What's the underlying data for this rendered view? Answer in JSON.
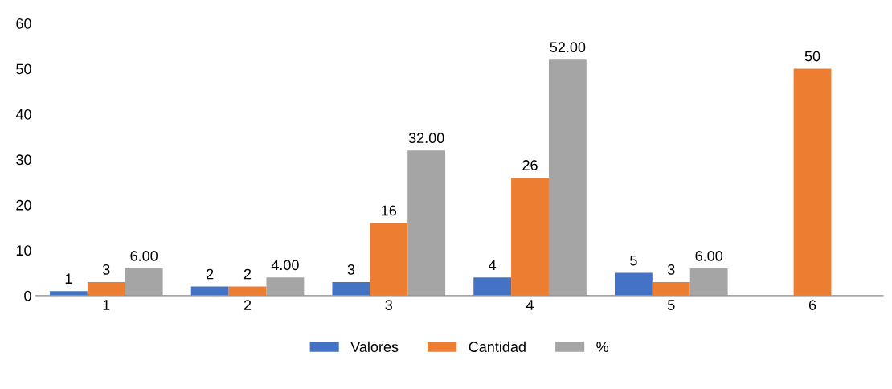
{
  "chart_data": {
    "type": "bar",
    "categories": [
      "1",
      "2",
      "3",
      "4",
      "5",
      "6"
    ],
    "series": [
      {
        "name": "Valores",
        "color": "#4472c4",
        "values": [
          1,
          2,
          3,
          4,
          5,
          null
        ],
        "value_labels": [
          "1",
          "2",
          "3",
          "4",
          "5",
          null
        ]
      },
      {
        "name": "Cantidad",
        "color": "#ed7d31",
        "values": [
          3,
          2,
          16,
          26,
          3,
          50
        ],
        "value_labels": [
          "3",
          "2",
          "16",
          "26",
          "3",
          "50"
        ]
      },
      {
        "name": "%",
        "color": "#a5a5a5",
        "values": [
          6,
          4,
          32,
          52,
          6,
          null
        ],
        "value_labels": [
          "6.00",
          "4.00",
          "32.00",
          "52.00",
          "6.00",
          null
        ]
      }
    ],
    "ylim": [
      0,
      60
    ],
    "yticks": [
      0,
      10,
      20,
      30,
      40,
      50,
      60
    ],
    "grid": false,
    "legend": "bottom"
  }
}
